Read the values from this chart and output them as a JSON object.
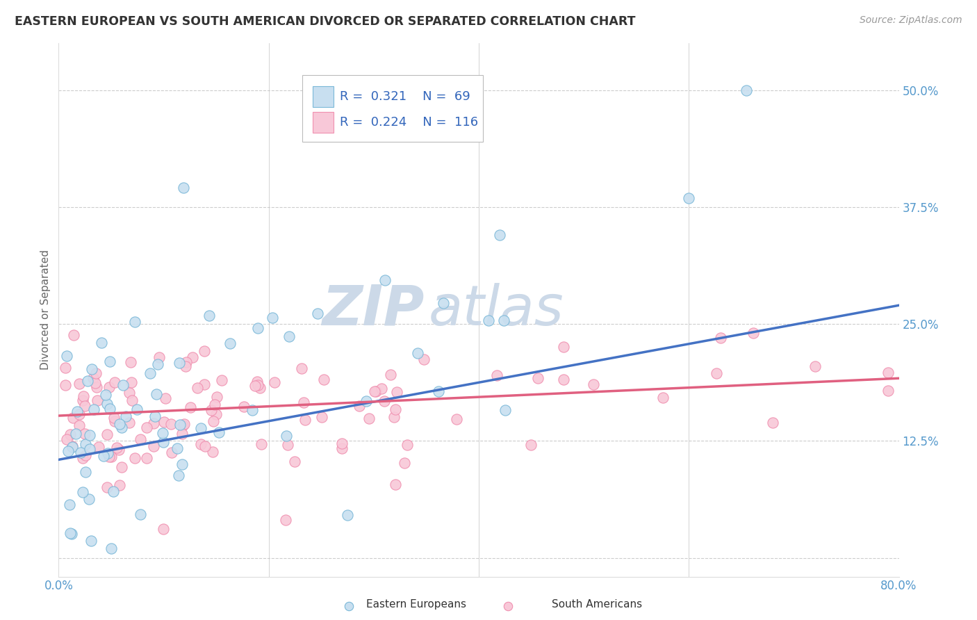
{
  "title": "EASTERN EUROPEAN VS SOUTH AMERICAN DIVORCED OR SEPARATED CORRELATION CHART",
  "source": "Source: ZipAtlas.com",
  "ylabel": "Divorced or Separated",
  "watermark_zip": "ZIP",
  "watermark_atlas": "atlas",
  "xlim": [
    0.0,
    0.8
  ],
  "ylim": [
    -0.02,
    0.55
  ],
  "xticks": [
    0.0,
    0.2,
    0.4,
    0.6,
    0.8
  ],
  "xticklabels": [
    "0.0%",
    "",
    "",
    "",
    "80.0%"
  ],
  "yticks": [
    0.0,
    0.125,
    0.25,
    0.375,
    0.5
  ],
  "yticklabels": [
    "",
    "12.5%",
    "25.0%",
    "37.5%",
    "50.0%"
  ],
  "legend_entries": [
    {
      "label": "Eastern Europeans",
      "color": "#a8c8e8",
      "R": "0.321",
      "N": "69"
    },
    {
      "label": "South Americans",
      "color": "#f4b8c8",
      "R": "0.224",
      "N": "116"
    }
  ],
  "blue_edge_color": "#7ab8d8",
  "pink_edge_color": "#f090b0",
  "blue_fill_color": "#c8dff0",
  "pink_fill_color": "#f8c8d8",
  "blue_line_color": "#4472c4",
  "pink_line_color": "#e06080",
  "blue_line_start_y": 0.105,
  "blue_line_end_y": 0.27,
  "pink_line_start_y": 0.152,
  "pink_line_end_y": 0.192,
  "background_color": "#ffffff",
  "grid_color": "#cccccc",
  "title_color": "#333333",
  "axis_label_color": "#666666",
  "tick_label_color": "#5599cc",
  "watermark_color": "#ccd9e8",
  "title_fontsize": 12.5,
  "source_fontsize": 10,
  "legend_fontsize": 13,
  "axis_label_fontsize": 11,
  "tick_label_fontsize": 12,
  "blue_seed": 42,
  "pink_seed": 99,
  "blue_N": 69,
  "pink_N": 116
}
